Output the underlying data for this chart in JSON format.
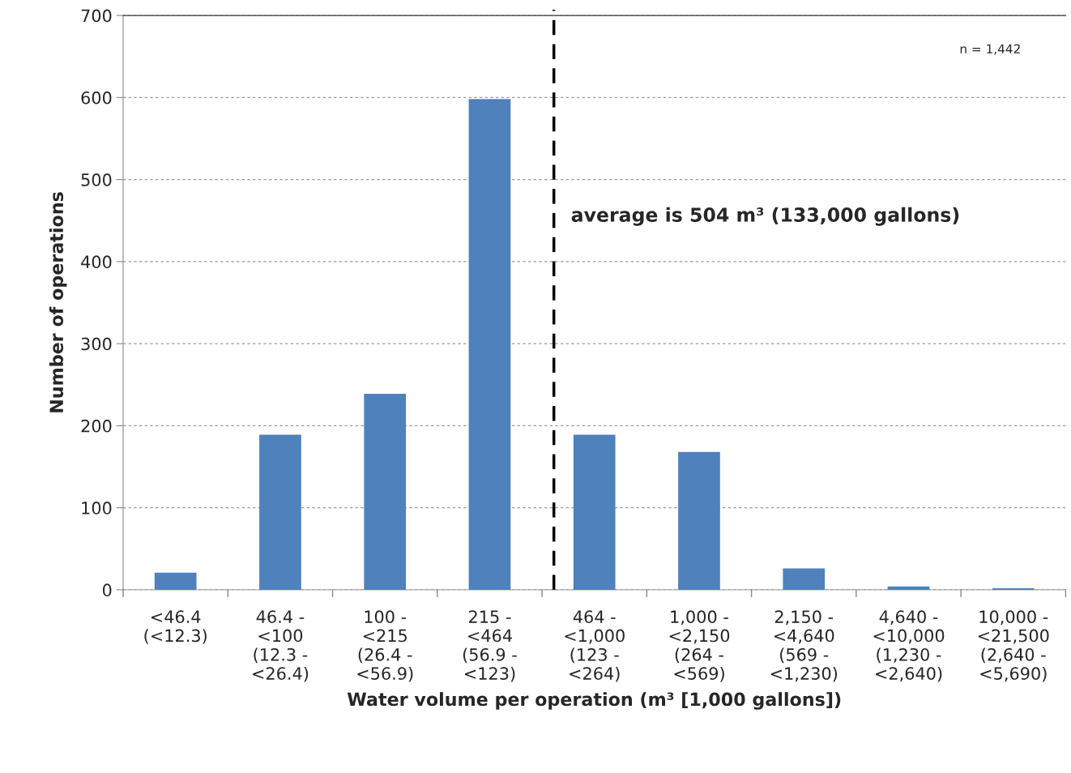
{
  "chart_data": {
    "type": "bar",
    "xlabel": "Water volume per operation (m³ [1,000 gallons])",
    "ylabel": "Number of operations",
    "categories": [
      "<46.4\n(<12.3)",
      "46.4 -\n<100\n(12.3 -\n<26.4)",
      "100 -\n<215\n(26.4 -\n<56.9)",
      "215 -\n<464\n(56.9 -\n<123)",
      "464 -\n<1,000\n(123 -\n<264)",
      "1,000 -\n<2,150\n(264 -\n<569)",
      "2,150 -\n<4,640\n(569 -\n<1,230)",
      "4,640 -\n<10,000\n(1,230 -\n<2,640)",
      "10,000 -\n<21,500\n(2,640 -\n<5,690)"
    ],
    "values": [
      21,
      189,
      239,
      598,
      189,
      168,
      26,
      4,
      2
    ],
    "color": "#4f81bd",
    "ylim": [
      0,
      700
    ],
    "yticks": [
      0,
      100,
      200,
      300,
      400,
      500,
      600,
      700
    ],
    "grid": "y",
    "annotations": [
      "average is 504 m³ (133,000 gallons)",
      "n = 1,442"
    ]
  }
}
